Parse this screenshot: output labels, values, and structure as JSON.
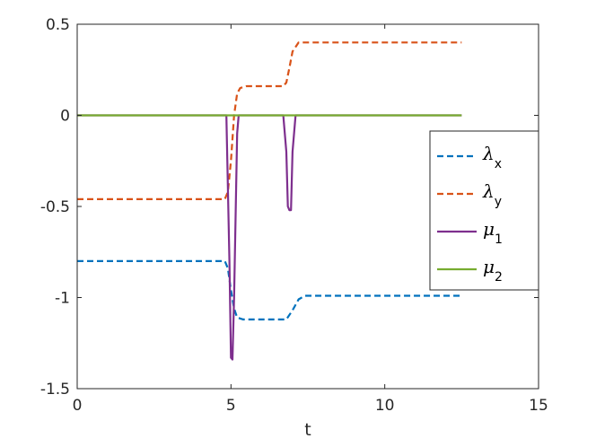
{
  "chart_data": {
    "type": "line",
    "title": "",
    "xlabel": "t",
    "ylabel": "",
    "xlim": [
      0,
      15
    ],
    "ylim": [
      -1.5,
      0.5
    ],
    "xticks": [
      0,
      5,
      10,
      15
    ],
    "xtick_labels": [
      "0",
      "5",
      "10",
      "15"
    ],
    "yticks": [
      -1.5,
      -1,
      -0.5,
      0,
      0.5
    ],
    "ytick_labels": [
      "-1.5",
      "-1",
      "-0.5",
      "0",
      "0.5"
    ],
    "grid": false,
    "legend_position": "right",
    "series": [
      {
        "name": "λx",
        "legend_main": "λ",
        "legend_sub": "x",
        "color": "#0072BD",
        "dash": "dashed",
        "x": [
          0,
          4.8,
          4.9,
          5.0,
          5.1,
          5.2,
          5.4,
          6.8,
          7.0,
          7.2,
          7.4,
          12.5
        ],
        "y": [
          -0.8,
          -0.8,
          -0.84,
          -0.96,
          -1.06,
          -1.11,
          -1.12,
          -1.12,
          -1.07,
          -1.01,
          -0.99,
          -0.99
        ]
      },
      {
        "name": "λy",
        "legend_main": "λ",
        "legend_sub": "y",
        "color": "#D95319",
        "dash": "dashed",
        "x": [
          0,
          4.8,
          4.9,
          5.0,
          5.1,
          5.2,
          5.3,
          5.5,
          6.7,
          6.8,
          6.9,
          7.0,
          7.2,
          12.5
        ],
        "y": [
          -0.46,
          -0.46,
          -0.42,
          -0.25,
          0.0,
          0.12,
          0.15,
          0.16,
          0.16,
          0.18,
          0.26,
          0.35,
          0.4,
          0.4
        ]
      },
      {
        "name": "μ1",
        "legend_main": "μ",
        "legend_sub": "1",
        "color": "#7E2F8E",
        "dash": "solid",
        "x": [
          0,
          4.85,
          4.95,
          5.0,
          5.05,
          5.1,
          5.2,
          5.25,
          6.7,
          6.8,
          6.85,
          6.9,
          6.95,
          7.0,
          7.1,
          12.5
        ],
        "y": [
          0,
          0,
          -0.8,
          -1.33,
          -1.34,
          -1.0,
          -0.1,
          0,
          0,
          -0.2,
          -0.5,
          -0.52,
          -0.52,
          -0.2,
          0,
          0
        ]
      },
      {
        "name": "μ2",
        "legend_main": "μ",
        "legend_sub": "2",
        "color": "#77AC30",
        "dash": "solid",
        "x": [
          0,
          12.5
        ],
        "y": [
          0,
          0
        ]
      }
    ]
  }
}
